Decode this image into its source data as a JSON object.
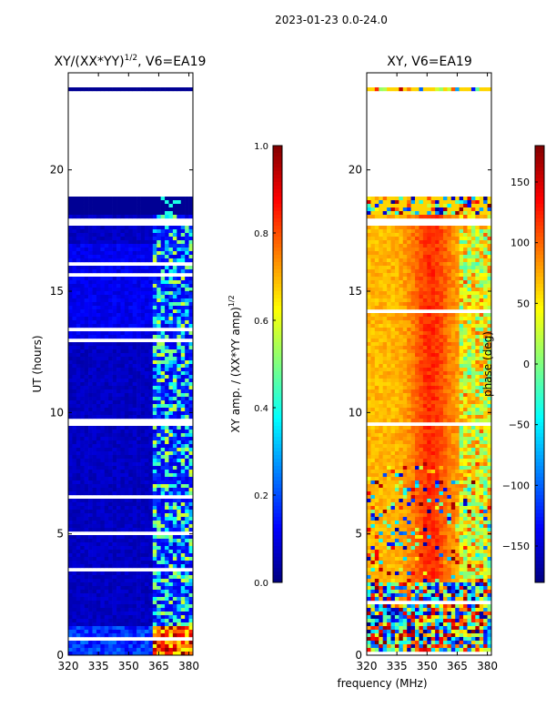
{
  "figure": {
    "suptitle": "2023-01-23 0.0-24.0",
    "shared_xlabel": "frequency (MHz)"
  },
  "chart_data": [
    {
      "type": "heatmap",
      "title": "XY/(XX*YY)^1/2, V6=EA19",
      "title_main": "XY/(XX*YY)",
      "title_exp": "1/2",
      "title_tail": ", V6=EA19",
      "xlabel": "",
      "ylabel": "UT (hours)",
      "xlim": [
        320,
        382
      ],
      "ylim": [
        0,
        24
      ],
      "xticks": [
        320,
        335,
        350,
        365,
        380
      ],
      "yticks": [
        0,
        5,
        10,
        15,
        20
      ],
      "metric": "amp",
      "colorbar": {
        "label": "XY amp. / (XX*YY amp)^1/2",
        "label_main": "XY amp. / (XX*YY amp)",
        "label_exp": "1/2",
        "range": [
          0.0,
          1.0
        ],
        "ticks": [
          0.0,
          0.2,
          0.4,
          0.6,
          0.8,
          1.0
        ],
        "tick_labels": [
          "0.0",
          "0.2",
          "0.4",
          "0.6",
          "0.8",
          "1.0"
        ]
      }
    },
    {
      "type": "heatmap",
      "title": "XY, V6=EA19",
      "xlabel": "frequency (MHz)",
      "ylabel": "",
      "xlim": [
        320,
        382
      ],
      "ylim": [
        0,
        24
      ],
      "xticks": [
        320,
        335,
        350,
        365,
        380
      ],
      "yticks": [
        0,
        5,
        10,
        15,
        20
      ],
      "metric": "phase",
      "colorbar": {
        "label": "phase (deg)",
        "range": [
          -180,
          180
        ],
        "ticks": [
          -150,
          -100,
          -50,
          0,
          50,
          100,
          150
        ],
        "tick_labels": [
          "−150",
          "−100",
          "−50",
          "0",
          "50",
          "100",
          "150"
        ]
      }
    }
  ],
  "data_gaps_hours": [
    [
      23.4,
      24.0
    ],
    [
      20.9,
      23.3
    ],
    [
      19.5,
      20.85
    ],
    [
      18.9,
      19.45
    ],
    [
      17.7,
      18.05
    ]
  ]
}
